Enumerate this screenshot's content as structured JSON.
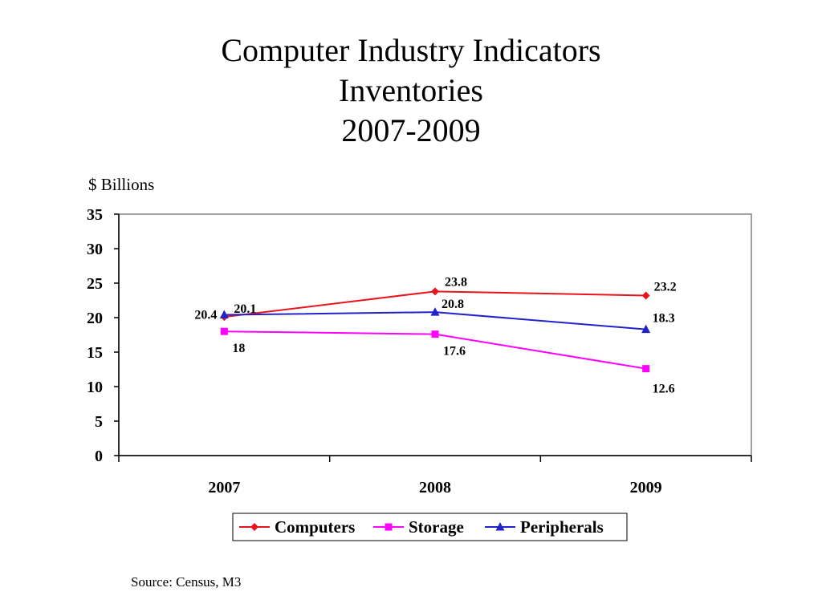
{
  "title": {
    "line1": "Computer Industry Indicators",
    "line2": "Inventories",
    "line3": "2007-2009"
  },
  "unit_label": "$ Billions",
  "source": "Source: Census, M3",
  "chart_data": {
    "type": "line",
    "x": [
      "2007",
      "2008",
      "2009"
    ],
    "ylim": [
      0,
      35
    ],
    "yticks": [
      0,
      5,
      10,
      15,
      20,
      25,
      30,
      35
    ],
    "grid": false,
    "legend": "bottom",
    "series": [
      {
        "name": "Computers",
        "values": [
          20.1,
          23.8,
          23.2
        ],
        "color": "#e8141c",
        "marker": "diamond"
      },
      {
        "name": "Storage",
        "values": [
          18,
          17.6,
          12.6
        ],
        "color": "#ff00ff",
        "marker": "square"
      },
      {
        "name": "Peripherals",
        "values": [
          20.4,
          20.8,
          18.3
        ],
        "color": "#2222cc",
        "marker": "triangle"
      }
    ]
  }
}
